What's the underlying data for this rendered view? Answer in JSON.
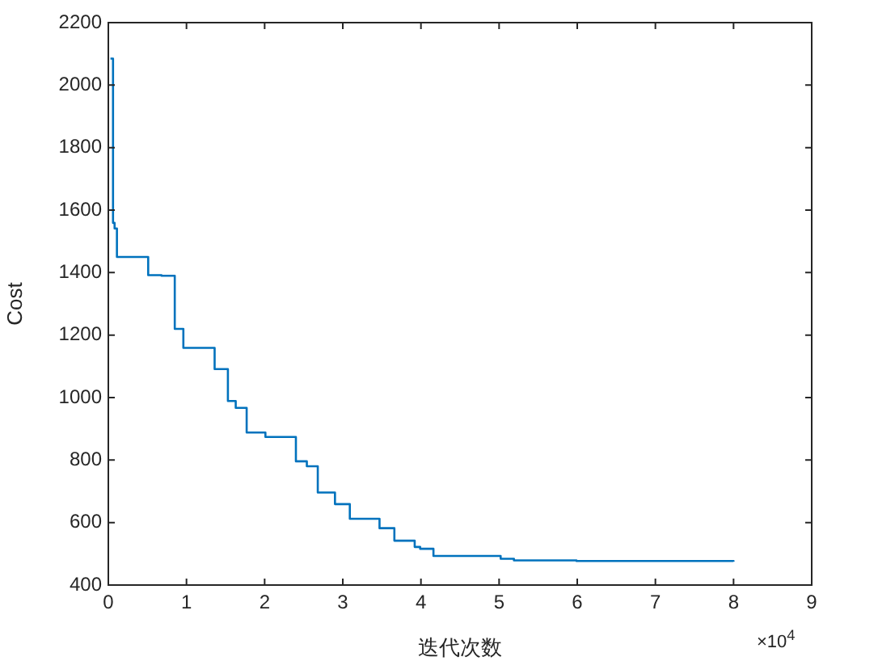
{
  "chart_data": {
    "type": "step",
    "xlabel": "迭代次数",
    "ylabel": "Cost",
    "annotations": [
      "×10$^{4}$"
    ],
    "x": [
      0.027,
      0.06,
      0.08,
      0.11,
      0.51,
      0.68,
      0.85,
      0.96,
      1.36,
      1.53,
      1.63,
      1.77,
      2.01,
      2.4,
      2.54,
      2.68,
      2.9,
      3.09,
      3.47,
      3.66,
      3.92,
      3.99,
      4.16,
      5.02,
      5.19,
      5.99,
      8
    ],
    "series": [
      {
        "color": "#0072bd",
        "values": [
          2085,
          1559,
          1541,
          1450,
          1392,
          1390,
          1220,
          1159,
          1091,
          989,
          967,
          888,
          874,
          796,
          780,
          696,
          659,
          612,
          582,
          542,
          522,
          516,
          493,
          484,
          479,
          477,
          475
        ]
      }
    ],
    "xlim": [
      0,
      9
    ],
    "xticks": [
      0,
      1,
      2,
      3,
      4,
      5,
      6,
      7,
      8,
      9
    ],
    "ylim": [
      400,
      2200
    ],
    "yticks": [
      400,
      600,
      800,
      1000,
      1200,
      1400,
      1600,
      1800,
      2000,
      2200
    ],
    "grid": false,
    "legend": false
  }
}
